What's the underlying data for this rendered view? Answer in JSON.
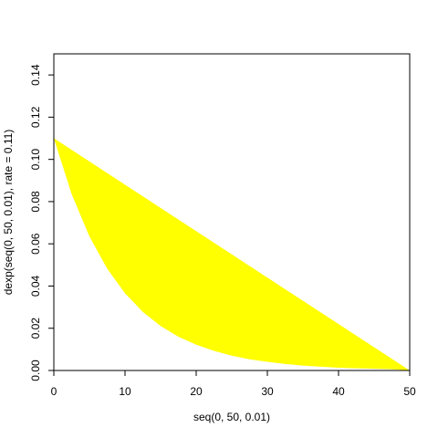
{
  "chart_data": {
    "type": "area",
    "title": "",
    "xlabel": "seq(0, 50, 0.01)",
    "ylabel": "dexp(seq(0, 50, 0.01), rate = 0.11)",
    "xlim": [
      0,
      50
    ],
    "ylim": [
      0,
      0.15
    ],
    "x_ticks": [
      "0",
      "10",
      "20",
      "30",
      "40",
      "50"
    ],
    "y_ticks": [
      "0.00",
      "0.02",
      "0.04",
      "0.06",
      "0.08",
      "0.10",
      "0.12",
      "0.14"
    ],
    "grid": false,
    "fill_color": "#FFFF00",
    "series": [
      {
        "kind": "upper-boundary",
        "x": [
          0,
          50
        ],
        "y": [
          0.11,
          0
        ]
      },
      {
        "kind": "lower-boundary",
        "x": [
          0,
          2.5,
          5,
          7.5,
          10,
          12.5,
          15,
          17.5,
          20,
          22.5,
          25,
          27.5,
          30,
          32.5,
          35,
          37.5,
          40,
          42.5,
          45,
          47.5,
          50
        ],
        "y": [
          0.11,
          0.0836,
          0.0635,
          0.0482,
          0.0366,
          0.0278,
          0.0211,
          0.016,
          0.0122,
          0.0093,
          0.007,
          0.0053,
          0.0041,
          0.0031,
          0.0023,
          0.0018,
          0.0013,
          0.001,
          0.0008,
          0.0006,
          0
        ]
      }
    ]
  }
}
